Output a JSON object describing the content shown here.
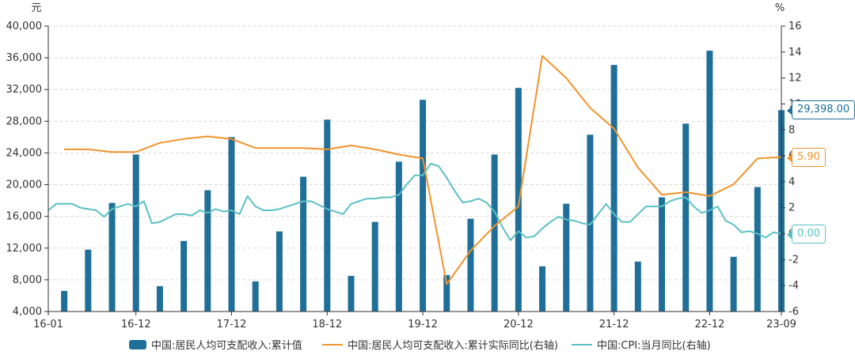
{
  "chart_data": {
    "type": "bar+line",
    "title": "",
    "left_axis": {
      "unit": "元",
      "min": 4000,
      "max": 40000,
      "step": 4000,
      "tick_labels": [
        "4,000",
        "8,000",
        "12,000",
        "16,000",
        "20,000",
        "24,000",
        "28,000",
        "32,000",
        "36,000",
        "40,000"
      ]
    },
    "right_axis": {
      "unit": "%",
      "min": -6,
      "max": 16,
      "step": 2,
      "tick_labels": [
        "-6",
        "-4",
        "-2",
        "0",
        "2",
        "4",
        "6",
        "8",
        "10",
        "12",
        "14",
        "16"
      ]
    },
    "x_ticks": [
      {
        "label": "16-01",
        "month_index": 0
      },
      {
        "label": "16-12",
        "month_index": 11
      },
      {
        "label": "17-12",
        "month_index": 23
      },
      {
        "label": "18-12",
        "month_index": 35
      },
      {
        "label": "19-12",
        "month_index": 47
      },
      {
        "label": "20-12",
        "month_index": 59
      },
      {
        "label": "21-12",
        "month_index": 71
      },
      {
        "label": "22-12",
        "month_index": 83
      },
      {
        "label": "23-09",
        "month_index": 92
      }
    ],
    "series": [
      {
        "name": "中国:居民人均可支配收入:累计值",
        "type": "bar",
        "axis": "left",
        "color": "#1f6f99",
        "points": [
          {
            "month_index": 2,
            "value": 6600
          },
          {
            "month_index": 5,
            "value": 11800
          },
          {
            "month_index": 8,
            "value": 17700
          },
          {
            "month_index": 11,
            "value": 23800
          },
          {
            "month_index": 14,
            "value": 7200
          },
          {
            "month_index": 17,
            "value": 12900
          },
          {
            "month_index": 20,
            "value": 19300
          },
          {
            "month_index": 23,
            "value": 26000
          },
          {
            "month_index": 26,
            "value": 7800
          },
          {
            "month_index": 29,
            "value": 14100
          },
          {
            "month_index": 32,
            "value": 21000
          },
          {
            "month_index": 35,
            "value": 28200
          },
          {
            "month_index": 38,
            "value": 8500
          },
          {
            "month_index": 41,
            "value": 15300
          },
          {
            "month_index": 44,
            "value": 22900
          },
          {
            "month_index": 47,
            "value": 30700
          },
          {
            "month_index": 50,
            "value": 8600
          },
          {
            "month_index": 53,
            "value": 15700
          },
          {
            "month_index": 56,
            "value": 23800
          },
          {
            "month_index": 59,
            "value": 32200
          },
          {
            "month_index": 62,
            "value": 9700
          },
          {
            "month_index": 65,
            "value": 17600
          },
          {
            "month_index": 68,
            "value": 26300
          },
          {
            "month_index": 71,
            "value": 35100
          },
          {
            "month_index": 74,
            "value": 10300
          },
          {
            "month_index": 77,
            "value": 18400
          },
          {
            "month_index": 80,
            "value": 27700
          },
          {
            "month_index": 83,
            "value": 36900
          },
          {
            "month_index": 86,
            "value": 10900
          },
          {
            "month_index": 89,
            "value": 19700
          },
          {
            "month_index": 92,
            "value": 29398
          }
        ],
        "last_label": "29,398.00"
      },
      {
        "name": "中国:居民人均可支配收入:累计实际同比(右轴)",
        "type": "line",
        "axis": "right",
        "color": "#f0932b",
        "points": [
          {
            "month_index": 2,
            "value": 6.5
          },
          {
            "month_index": 5,
            "value": 6.5
          },
          {
            "month_index": 8,
            "value": 6.3
          },
          {
            "month_index": 11,
            "value": 6.3
          },
          {
            "month_index": 14,
            "value": 7.0
          },
          {
            "month_index": 17,
            "value": 7.3
          },
          {
            "month_index": 20,
            "value": 7.5
          },
          {
            "month_index": 23,
            "value": 7.3
          },
          {
            "month_index": 26,
            "value": 6.6
          },
          {
            "month_index": 29,
            "value": 6.6
          },
          {
            "month_index": 32,
            "value": 6.6
          },
          {
            "month_index": 35,
            "value": 6.5
          },
          {
            "month_index": 38,
            "value": 6.8
          },
          {
            "month_index": 41,
            "value": 6.5
          },
          {
            "month_index": 44,
            "value": 6.1
          },
          {
            "month_index": 47,
            "value": 5.8
          },
          {
            "month_index": 50,
            "value": -3.9
          },
          {
            "month_index": 53,
            "value": -1.3
          },
          {
            "month_index": 56,
            "value": 0.6
          },
          {
            "month_index": 59,
            "value": 2.1
          },
          {
            "month_index": 62,
            "value": 13.7
          },
          {
            "month_index": 65,
            "value": 12.0
          },
          {
            "month_index": 68,
            "value": 9.7
          },
          {
            "month_index": 71,
            "value": 8.1
          },
          {
            "month_index": 74,
            "value": 5.1
          },
          {
            "month_index": 77,
            "value": 3.0
          },
          {
            "month_index": 80,
            "value": 3.2
          },
          {
            "month_index": 83,
            "value": 2.9
          },
          {
            "month_index": 86,
            "value": 3.8
          },
          {
            "month_index": 89,
            "value": 5.8
          },
          {
            "month_index": 92,
            "value": 5.9
          }
        ],
        "last_label": "5.90"
      },
      {
        "name": "中国:CPI:当月同比(右轴)",
        "type": "line",
        "axis": "right",
        "color": "#5bc0c4",
        "values": [
          1.8,
          2.3,
          2.3,
          2.3,
          2.0,
          1.9,
          1.8,
          1.3,
          1.9,
          2.1,
          2.3,
          2.1,
          2.5,
          0.8,
          0.9,
          1.2,
          1.5,
          1.5,
          1.4,
          1.8,
          1.6,
          1.9,
          1.7,
          1.8,
          1.5,
          2.9,
          2.1,
          1.8,
          1.8,
          1.9,
          2.1,
          2.3,
          2.5,
          2.5,
          2.2,
          1.9,
          1.7,
          1.5,
          2.3,
          2.5,
          2.7,
          2.7,
          2.8,
          2.8,
          3.0,
          3.8,
          4.5,
          4.5,
          5.4,
          5.2,
          4.3,
          3.3,
          2.4,
          2.5,
          2.7,
          2.4,
          1.7,
          0.5,
          -0.5,
          0.2,
          -0.3,
          -0.2,
          0.4,
          0.9,
          1.3,
          1.1,
          1.0,
          0.8,
          0.7,
          1.5,
          2.3,
          1.5,
          0.9,
          0.9,
          1.5,
          2.1,
          2.1,
          2.1,
          2.5,
          2.7,
          2.8,
          2.1,
          1.6,
          1.8,
          2.1,
          1.0,
          0.7,
          0.1,
          0.2,
          0.0,
          -0.3,
          0.1,
          0.0
        ],
        "last_label": "0.00"
      }
    ],
    "grid": true,
    "legend_position": "bottom"
  }
}
